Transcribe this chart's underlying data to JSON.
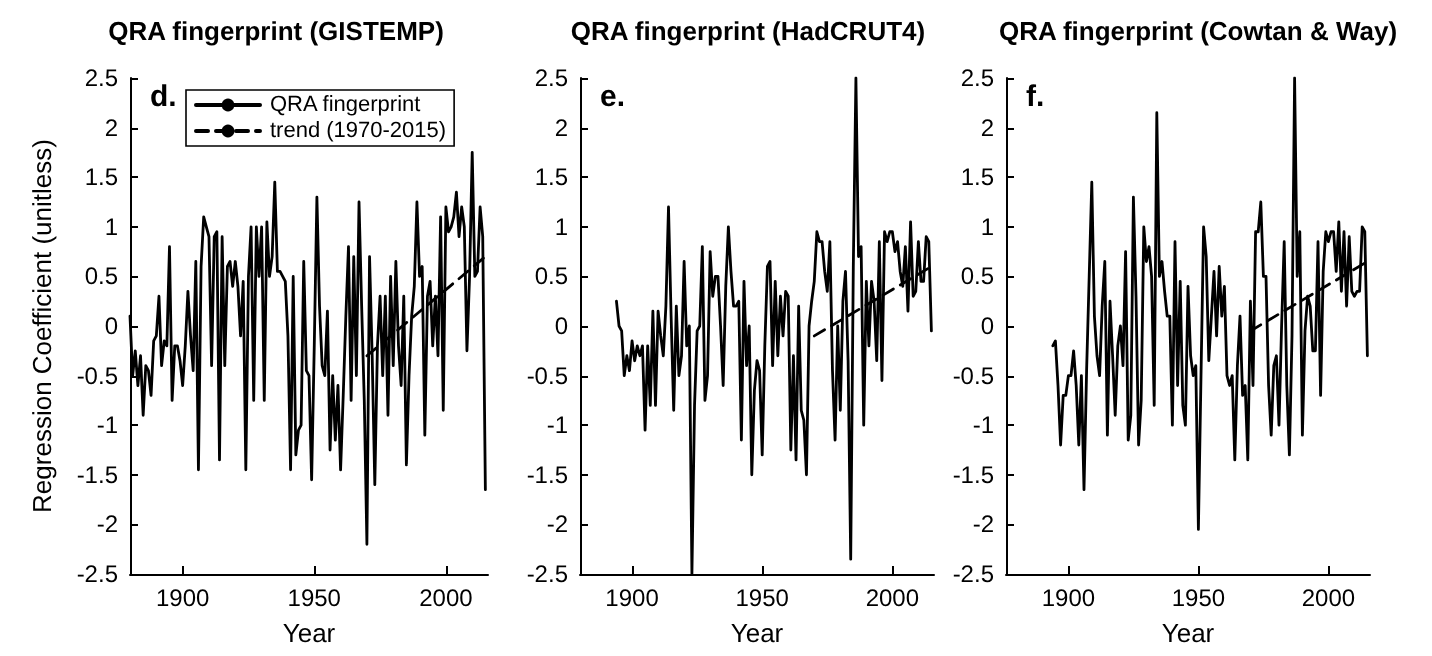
{
  "chart_data": [
    {
      "type": "line",
      "title": "QRA fingerprint (GISTEMP)",
      "xlabel": "Year",
      "ylabel": "Regression Coefficient (unitless)",
      "annotations": [
        "d."
      ],
      "xlim": [
        1880,
        2016
      ],
      "xticks": [
        1900,
        1950,
        2000
      ],
      "ylim": [
        -2.5,
        2.5
      ],
      "yticks": [
        -2.5,
        -2,
        -1.5,
        -1,
        -0.5,
        0,
        0.5,
        1,
        1.5,
        2,
        2.5
      ],
      "grid": false,
      "legend": "top",
      "marker": "none",
      "series": [
        {
          "name": "QRA fingerprint",
          "color": "#000000",
          "line_style": "solid",
          "x": [
            1880,
            1881,
            1882,
            1883,
            1884,
            1885,
            1886,
            1887,
            1888,
            1889,
            1890,
            1891,
            1892,
            1893,
            1894,
            1895,
            1896,
            1897,
            1898,
            1899,
            1900,
            1901,
            1902,
            1903,
            1904,
            1905,
            1906,
            1907,
            1908,
            1909,
            1910,
            1911,
            1912,
            1913,
            1914,
            1915,
            1916,
            1917,
            1918,
            1919,
            1920,
            1921,
            1922,
            1923,
            1924,
            1925,
            1926,
            1927,
            1928,
            1929,
            1930,
            1931,
            1932,
            1933,
            1934,
            1935,
            1936,
            1937,
            1938,
            1939,
            1940,
            1941,
            1942,
            1943,
            1944,
            1945,
            1946,
            1947,
            1948,
            1949,
            1950,
            1951,
            1952,
            1953,
            1954,
            1955,
            1956,
            1957,
            1958,
            1959,
            1960,
            1961,
            1962,
            1963,
            1964,
            1965,
            1966,
            1967,
            1968,
            1969,
            1970,
            1971,
            1972,
            1973,
            1974,
            1975,
            1976,
            1977,
            1978,
            1979,
            1980,
            1981,
            1982,
            1983,
            1984,
            1985,
            1986,
            1987,
            1988,
            1989,
            1990,
            1991,
            1992,
            1993,
            1994,
            1995,
            1996,
            1997,
            1998,
            1999,
            2000,
            2001,
            2002,
            2003,
            2004,
            2005,
            2006,
            2007,
            2008,
            2009,
            2010,
            2011,
            2012,
            2013,
            2014,
            2015
          ],
          "values": [
            0.1,
            -0.5,
            -0.25,
            -0.6,
            -0.3,
            -0.9,
            -0.4,
            -0.45,
            -0.7,
            -0.15,
            -0.1,
            0.3,
            -0.4,
            -0.15,
            -0.2,
            0.8,
            -0.75,
            -0.2,
            -0.2,
            -0.35,
            -0.6,
            -0.2,
            0.35,
            -0.1,
            -0.45,
            0.65,
            -1.45,
            0.6,
            1.1,
            1.0,
            0.9,
            -0.4,
            0.9,
            0.95,
            -1.35,
            0.9,
            -0.4,
            0.6,
            0.65,
            0.4,
            0.65,
            0.4,
            -0.1,
            0.45,
            -1.45,
            0.5,
            1.0,
            -0.75,
            1.0,
            0.5,
            1.0,
            -0.75,
            1.05,
            0.5,
            0.7,
            1.45,
            0.55,
            0.55,
            0.5,
            0.45,
            -0.1,
            -1.45,
            0.5,
            -1.3,
            -1.05,
            -1.0,
            0.65,
            -0.45,
            -0.5,
            -1.55,
            -0.2,
            1.3,
            0.2,
            -0.4,
            -0.5,
            0.15,
            -1.25,
            -0.5,
            -1.15,
            -0.6,
            -1.45,
            -0.7,
            0.1,
            0.8,
            -0.75,
            0.7,
            -0.5,
            1.25,
            0.2,
            -0.75,
            -2.2,
            0.7,
            -0.3,
            -1.6,
            -0.2,
            0.3,
            -0.5,
            0.3,
            -0.9,
            0.5,
            -0.4,
            0.65,
            -0.2,
            -0.6,
            0.3,
            -1.4,
            -0.5,
            0.1,
            0.4,
            1.25,
            0.5,
            0.6,
            -1.1,
            0.3,
            0.45,
            -0.2,
            0.3,
            -0.3,
            1.1,
            -0.85,
            1.2,
            0.95,
            1.0,
            1.1,
            1.35,
            0.9,
            1.2,
            1.0,
            -0.25,
            0.5,
            1.75,
            0.5,
            0.55,
            1.2,
            0.9,
            -1.65
          ]
        },
        {
          "name": "trend (1970-2015)",
          "color": "#000000",
          "line_style": "dashed",
          "x": [
            1970,
            2015
          ],
          "values": [
            -0.3,
            0.7
          ]
        }
      ]
    },
    {
      "type": "line",
      "title": "QRA fingerprint (HadCRUT4)",
      "xlabel": "Year",
      "annotations": [
        "e."
      ],
      "xlim": [
        1880,
        2016
      ],
      "xticks": [
        1900,
        1950,
        2000
      ],
      "ylim": [
        -2.5,
        2.5
      ],
      "yticks": [
        -2.5,
        -2,
        -1.5,
        -1,
        -0.5,
        0,
        0.5,
        1,
        1.5,
        2,
        2.5
      ],
      "grid": false,
      "legend": false,
      "marker": "none",
      "series": [
        {
          "color": "#000000",
          "line_style": "solid",
          "x": [
            1894,
            1895,
            1896,
            1897,
            1898,
            1899,
            1900,
            1901,
            1902,
            1903,
            1904,
            1905,
            1906,
            1907,
            1908,
            1909,
            1910,
            1911,
            1912,
            1913,
            1914,
            1915,
            1916,
            1917,
            1918,
            1919,
            1920,
            1921,
            1922,
            1923,
            1924,
            1925,
            1926,
            1927,
            1928,
            1929,
            1930,
            1931,
            1932,
            1933,
            1934,
            1935,
            1936,
            1937,
            1938,
            1939,
            1940,
            1941,
            1942,
            1943,
            1944,
            1945,
            1946,
            1947,
            1948,
            1949,
            1950,
            1951,
            1952,
            1953,
            1954,
            1955,
            1956,
            1957,
            1958,
            1959,
            1960,
            1961,
            1962,
            1963,
            1964,
            1965,
            1966,
            1967,
            1968,
            1969,
            1970,
            1971,
            1972,
            1973,
            1974,
            1975,
            1976,
            1977,
            1978,
            1979,
            1980,
            1981,
            1982,
            1983,
            1984,
            1985,
            1986,
            1987,
            1988,
            1989,
            1990,
            1991,
            1992,
            1993,
            1994,
            1995,
            1996,
            1997,
            1998,
            1999,
            2000,
            2001,
            2002,
            2003,
            2004,
            2005,
            2006,
            2007,
            2008,
            2009,
            2010,
            2011,
            2012,
            2013,
            2014,
            2015
          ],
          "values": [
            0.25,
            0.0,
            -0.05,
            -0.5,
            -0.3,
            -0.45,
            -0.15,
            -0.35,
            -0.2,
            -0.3,
            -0.2,
            -1.05,
            -0.2,
            -0.8,
            0.15,
            -0.8,
            0.15,
            -0.1,
            -0.3,
            0.2,
            1.2,
            0.1,
            -0.85,
            0.2,
            -0.5,
            -0.3,
            0.65,
            -0.2,
            0.0,
            -2.5,
            -0.8,
            -0.05,
            0.0,
            0.8,
            -0.75,
            -0.5,
            0.75,
            0.3,
            0.5,
            0.5,
            0.0,
            -0.6,
            0.4,
            1.0,
            0.55,
            0.2,
            0.2,
            0.25,
            -1.15,
            0.45,
            -0.4,
            0.0,
            -1.5,
            -0.65,
            -0.35,
            -0.45,
            -1.3,
            -0.2,
            0.6,
            0.65,
            -0.4,
            0.45,
            -0.3,
            0.3,
            -0.1,
            0.35,
            0.3,
            -1.25,
            -0.3,
            -1.35,
            0.2,
            -0.85,
            -0.95,
            -1.5,
            0.0,
            0.25,
            0.45,
            0.95,
            0.85,
            0.85,
            0.55,
            0.35,
            0.85,
            -0.45,
            -1.15,
            0.0,
            -0.85,
            0.25,
            0.55,
            -0.35,
            -2.35,
            0.6,
            2.5,
            0.7,
            0.8,
            -1.0,
            0.45,
            -0.2,
            0.45,
            0.25,
            -0.35,
            0.85,
            -0.55,
            0.95,
            0.85,
            0.95,
            0.95,
            0.75,
            0.85,
            0.55,
            0.4,
            0.8,
            0.15,
            1.05,
            0.3,
            0.35,
            0.85,
            0.45,
            0.45,
            0.9,
            0.85,
            -0.05
          ]
        },
        {
          "color": "#000000",
          "line_style": "dashed",
          "x": [
            1970,
            2015
          ],
          "values": [
            -0.1,
            0.6
          ]
        }
      ]
    },
    {
      "type": "line",
      "title": "QRA fingerprint (Cowtan & Way)",
      "xlabel": "Year",
      "annotations": [
        "f."
      ],
      "xlim": [
        1876,
        2016
      ],
      "xticks": [
        1900,
        1950,
        2000
      ],
      "ylim": [
        -2.5,
        2.5
      ],
      "yticks": [
        -2.5,
        -2,
        -1.5,
        -1,
        -0.5,
        0,
        0.5,
        1,
        1.5,
        2,
        2.5
      ],
      "grid": false,
      "legend": false,
      "marker": "none",
      "series": [
        {
          "color": "#000000",
          "line_style": "solid",
          "x": [
            1894,
            1895,
            1896,
            1897,
            1898,
            1899,
            1900,
            1901,
            1902,
            1903,
            1904,
            1905,
            1906,
            1907,
            1908,
            1909,
            1910,
            1911,
            1912,
            1913,
            1914,
            1915,
            1916,
            1917,
            1918,
            1919,
            1920,
            1921,
            1922,
            1923,
            1924,
            1925,
            1926,
            1927,
            1928,
            1929,
            1930,
            1931,
            1932,
            1933,
            1934,
            1935,
            1936,
            1937,
            1938,
            1939,
            1940,
            1941,
            1942,
            1943,
            1944,
            1945,
            1946,
            1947,
            1948,
            1949,
            1950,
            1951,
            1952,
            1953,
            1954,
            1955,
            1956,
            1957,
            1958,
            1959,
            1960,
            1961,
            1962,
            1963,
            1964,
            1965,
            1966,
            1967,
            1968,
            1969,
            1970,
            1971,
            1972,
            1973,
            1974,
            1975,
            1976,
            1977,
            1978,
            1979,
            1980,
            1981,
            1982,
            1983,
            1984,
            1985,
            1986,
            1987,
            1988,
            1989,
            1990,
            1991,
            1992,
            1993,
            1994,
            1995,
            1996,
            1997,
            1998,
            1999,
            2000,
            2001,
            2002,
            2003,
            2004,
            2005,
            2006,
            2007,
            2008,
            2009,
            2010,
            2011,
            2012,
            2013,
            2014,
            2015
          ],
          "values": [
            -0.2,
            -0.15,
            -0.6,
            -1.2,
            -0.7,
            -0.7,
            -0.5,
            -0.5,
            -0.25,
            -0.6,
            -1.2,
            -0.5,
            -1.65,
            -0.45,
            0.5,
            1.45,
            0.1,
            -0.3,
            -0.5,
            0.2,
            0.65,
            -1.1,
            0.25,
            -0.3,
            -0.9,
            -0.2,
            0.0,
            -0.4,
            0.75,
            -1.15,
            -0.9,
            1.3,
            0.3,
            -1.2,
            -0.75,
            1.0,
            0.65,
            0.8,
            0.5,
            -0.8,
            2.15,
            0.5,
            0.65,
            0.35,
            0.1,
            0.1,
            -1.0,
            0.85,
            -0.6,
            0.45,
            -0.8,
            -1.0,
            0.4,
            -0.3,
            -0.5,
            -0.4,
            -2.05,
            -0.5,
            1.0,
            0.7,
            -0.35,
            0.1,
            0.55,
            -0.1,
            0.6,
            0.1,
            0.4,
            -0.5,
            -0.6,
            -0.5,
            -1.35,
            -0.4,
            0.1,
            -0.7,
            -0.6,
            -1.35,
            0.25,
            -0.6,
            0.95,
            0.95,
            1.25,
            0.5,
            0.5,
            -0.6,
            -1.1,
            -0.4,
            -0.3,
            -1.0,
            0.0,
            0.85,
            -0.6,
            -1.3,
            -0.1,
            2.5,
            0.5,
            0.95,
            -1.1,
            -0.05,
            0.3,
            0.2,
            -0.25,
            -0.25,
            0.85,
            -0.7,
            0.55,
            0.95,
            0.85,
            0.95,
            0.95,
            0.55,
            1.05,
            0.35,
            0.95,
            0.2,
            0.9,
            0.35,
            0.3,
            0.35,
            0.35,
            1.0,
            0.95,
            -0.3
          ]
        },
        {
          "color": "#000000",
          "line_style": "dashed",
          "x": [
            1970,
            2015
          ],
          "values": [
            -0.05,
            0.65
          ]
        }
      ]
    }
  ]
}
